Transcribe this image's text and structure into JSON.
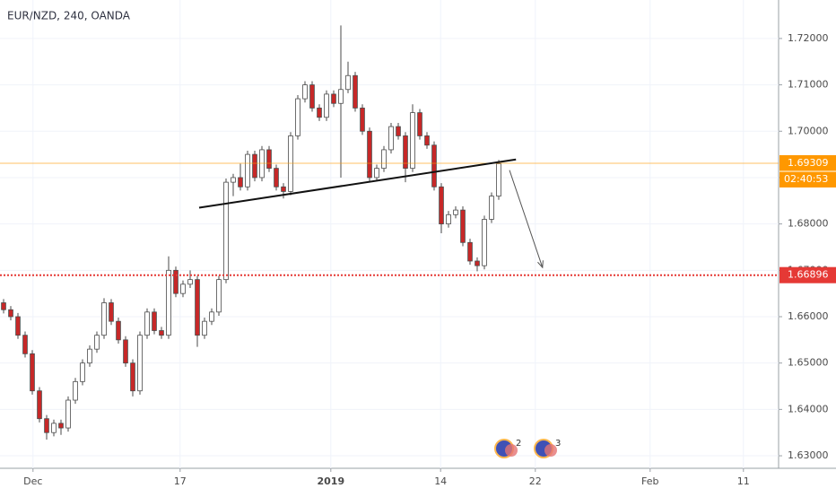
{
  "chart_data": {
    "type": "candlestick",
    "title": "EUR/NZD, 240, OANDA",
    "open": [
      1.663,
      1.6615,
      1.66,
      1.656,
      1.652,
      1.644,
      1.638,
      1.635,
      1.637,
      1.636,
      1.642,
      1.646,
      1.65,
      1.653,
      1.656,
      1.663,
      1.659,
      1.655,
      1.65,
      1.644,
      1.656,
      1.661,
      1.657,
      1.656,
      1.67,
      1.665,
      1.667,
      1.668,
      1.656,
      1.659,
      1.661,
      1.668,
      1.689,
      1.69,
      1.688,
      1.695,
      1.69,
      1.696,
      1.692,
      1.688,
      1.687,
      1.699,
      1.707,
      1.71,
      1.705,
      1.703,
      1.708,
      1.706,
      1.709,
      1.712,
      1.705,
      1.7,
      1.69,
      1.692,
      1.696,
      1.701,
      1.699,
      1.692,
      1.704,
      1.699,
      1.697,
      1.688,
      1.68,
      1.682,
      1.683,
      1.676,
      1.672,
      1.671,
      1.681,
      1.686
    ],
    "high": [
      1.6638,
      1.6623,
      1.6608,
      1.6568,
      1.6528,
      1.6448,
      1.6388,
      1.6378,
      1.6378,
      1.6428,
      1.6468,
      1.6508,
      1.6538,
      1.6568,
      1.664,
      1.6638,
      1.6598,
      1.6558,
      1.6508,
      1.6568,
      1.6618,
      1.6618,
      1.6578,
      1.673,
      1.6708,
      1.6678,
      1.67,
      1.6688,
      1.6598,
      1.6618,
      1.6688,
      1.6898,
      1.6908,
      1.693,
      1.6958,
      1.6958,
      1.6968,
      1.6968,
      1.6928,
      1.6888,
      1.6998,
      1.7078,
      1.7108,
      1.7108,
      1.7058,
      1.7088,
      1.7088,
      1.7228,
      1.715,
      1.7128,
      1.7058,
      1.7008,
      1.6928,
      1.6968,
      1.7018,
      1.7018,
      1.6998,
      1.7058,
      1.7048,
      1.6998,
      1.6978,
      1.6888,
      1.6828,
      1.6838,
      1.6838,
      1.6768,
      1.6728,
      1.6818,
      1.6868,
      1.6938
    ],
    "low": [
      1.6607,
      1.6592,
      1.6552,
      1.6512,
      1.6432,
      1.6372,
      1.6335,
      1.6342,
      1.6345,
      1.6352,
      1.6412,
      1.6452,
      1.6492,
      1.6522,
      1.6552,
      1.6582,
      1.6542,
      1.6492,
      1.6428,
      1.6432,
      1.6552,
      1.6562,
      1.6552,
      1.6552,
      1.6642,
      1.6642,
      1.6662,
      1.6535,
      1.6552,
      1.6582,
      1.6602,
      1.6672,
      1.686,
      1.6872,
      1.6872,
      1.6892,
      1.6892,
      1.6912,
      1.6872,
      1.6855,
      1.6862,
      1.6982,
      1.7062,
      1.7042,
      1.7022,
      1.7022,
      1.7052,
      1.69,
      1.7082,
      1.7042,
      1.6992,
      1.6892,
      1.6892,
      1.6912,
      1.6952,
      1.6982,
      1.689,
      1.6912,
      1.6982,
      1.6962,
      1.6872,
      1.678,
      1.6792,
      1.6812,
      1.6752,
      1.6712,
      1.6698,
      1.6702,
      1.6802,
      1.6852
    ],
    "close": [
      1.6615,
      1.66,
      1.656,
      1.652,
      1.644,
      1.638,
      1.635,
      1.637,
      1.636,
      1.642,
      1.646,
      1.65,
      1.653,
      1.656,
      1.663,
      1.659,
      1.655,
      1.65,
      1.644,
      1.656,
      1.661,
      1.657,
      1.656,
      1.67,
      1.665,
      1.667,
      1.668,
      1.656,
      1.659,
      1.661,
      1.668,
      1.689,
      1.69,
      1.688,
      1.695,
      1.69,
      1.696,
      1.692,
      1.688,
      1.687,
      1.699,
      1.707,
      1.71,
      1.705,
      1.703,
      1.708,
      1.706,
      1.709,
      1.712,
      1.705,
      1.7,
      1.69,
      1.692,
      1.696,
      1.701,
      1.699,
      1.692,
      1.704,
      1.699,
      1.697,
      1.688,
      1.68,
      1.682,
      1.683,
      1.676,
      1.672,
      1.671,
      1.681,
      1.686,
      1.693
    ],
    "up_color": "#ffffff",
    "down_color": "#c62828",
    "edge_color": "#4a4a4a",
    "xlim": [
      -0.5,
      108
    ],
    "ylim": [
      1.6273,
      1.7283
    ],
    "xticks": [
      {
        "value": 4.1,
        "label": "Dec"
      },
      {
        "value": 24.6,
        "label": "17"
      },
      {
        "value": 45.6,
        "label": "2019"
      },
      {
        "value": 60.9,
        "label": "14"
      },
      {
        "value": 74.1,
        "label": "22"
      },
      {
        "value": 90.1,
        "label": "Feb"
      },
      {
        "value": 103.1,
        "label": "11"
      }
    ],
    "yticks": [
      {
        "value": 1.63,
        "label": "1.63000"
      },
      {
        "value": 1.64,
        "label": "1.64000"
      },
      {
        "value": 1.65,
        "label": "1.65000"
      },
      {
        "value": 1.66,
        "label": "1.66000"
      },
      {
        "value": 1.67,
        "label": "1.67000"
      },
      {
        "value": 1.68,
        "label": "1.68000"
      },
      {
        "value": 1.69,
        "label": "1.69000"
      },
      {
        "value": 1.7,
        "label": "1.70000"
      },
      {
        "value": 1.71,
        "label": "1.71000"
      },
      {
        "value": 1.72,
        "label": "1.72000"
      }
    ],
    "grid": true,
    "horizontal_lines": [
      {
        "value": 1.69309,
        "color": "#ff9800",
        "style": "solid",
        "countdown": "02:40:53"
      },
      {
        "value": 1.66896,
        "color": "#e53935",
        "style": "dotted"
      }
    ],
    "trendline": {
      "x": [
        27.25,
        71.4
      ],
      "y": [
        1.6835,
        1.6939
      ]
    },
    "arrow": {
      "x": [
        70.5,
        75.1
      ],
      "y": [
        1.6916,
        1.6706
      ]
    },
    "events": [
      {
        "label": "2"
      },
      {
        "label": "3"
      }
    ]
  }
}
